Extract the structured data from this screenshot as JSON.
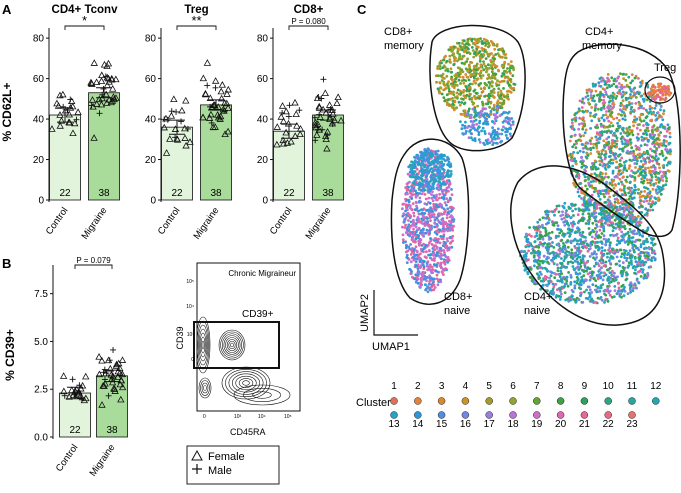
{
  "panel_labels": {
    "a": "A",
    "b": "B",
    "c": "C"
  },
  "panel_a": {
    "ylabel": "% CD62L+",
    "yticks": [
      "0",
      "20",
      "40",
      "60",
      "80"
    ],
    "xcategories": [
      "Control",
      "Migraine"
    ],
    "plots": [
      {
        "title": "CD4+ Tconv",
        "sig": "*",
        "n": [
          "22",
          "38"
        ]
      },
      {
        "title": "Treg",
        "sig": "**",
        "n": [
          "22",
          "38"
        ]
      },
      {
        "title": "CD8+",
        "sig": "P = 0.080",
        "n": [
          "22",
          "38"
        ]
      }
    ]
  },
  "panel_b": {
    "ylabel": "% CD39+",
    "yticks": [
      "0.0",
      "2.5",
      "5.0",
      "7.5"
    ],
    "xcategories": [
      "Control",
      "Migraine"
    ],
    "sig": "P = 0.079",
    "n": [
      "22",
      "38"
    ],
    "flow": {
      "title": "Chronic Migraineur",
      "gate": "CD39+",
      "xlabel": "CD45RA",
      "ylabel": "CD39",
      "xticks": [
        "0",
        "10³",
        "10⁴",
        "10⁵"
      ],
      "yticks": [
        "0",
        "10³",
        "10⁴",
        "10⁵"
      ]
    },
    "legend": {
      "female": "Female",
      "male": "Male"
    }
  },
  "panel_c": {
    "groups": [
      {
        "line1": "CD8+",
        "line2": "memory"
      },
      {
        "line1": "CD4+",
        "line2": "memory"
      },
      {
        "line1": "Treg",
        "line2": ""
      },
      {
        "line1": "CD8+",
        "line2": "naive"
      },
      {
        "line1": "CD4+",
        "line2": "naive"
      }
    ],
    "xlabel": "UMAP1",
    "ylabel": "UMAP2",
    "cluster_title": "Cluster",
    "clusters": [
      {
        "id": "1",
        "color": "#e0705a"
      },
      {
        "id": "2",
        "color": "#e5833a"
      },
      {
        "id": "3",
        "color": "#da8a2c"
      },
      {
        "id": "4",
        "color": "#c9922a"
      },
      {
        "id": "5",
        "color": "#a39a2a"
      },
      {
        "id": "6",
        "color": "#8fa52b"
      },
      {
        "id": "7",
        "color": "#62a532"
      },
      {
        "id": "8",
        "color": "#3fa140"
      },
      {
        "id": "9",
        "color": "#2aa45c"
      },
      {
        "id": "10",
        "color": "#2aa77e"
      },
      {
        "id": "11",
        "color": "#25a89a"
      },
      {
        "id": "12",
        "color": "#23a7b0"
      },
      {
        "id": "13",
        "color": "#24a3c8"
      },
      {
        "id": "14",
        "color": "#2b98d8"
      },
      {
        "id": "15",
        "color": "#4f8ee0"
      },
      {
        "id": "16",
        "color": "#7486e2"
      },
      {
        "id": "17",
        "color": "#9a7ee0"
      },
      {
        "id": "18",
        "color": "#b973da"
      },
      {
        "id": "19",
        "color": "#d06cc9"
      },
      {
        "id": "20",
        "color": "#e066b4"
      },
      {
        "id": "21",
        "color": "#e8659a"
      },
      {
        "id": "22",
        "color": "#ea6a82"
      },
      {
        "id": "23",
        "color": "#e4736c"
      }
    ]
  },
  "chart_data": [
    {
      "type": "bar",
      "title": "CD4+ Tconv",
      "ylabel": "% CD62L+",
      "categories": [
        "Control",
        "Migraine"
      ],
      "values": [
        42,
        53
      ],
      "sem": [
        3.5,
        2.5
      ],
      "n": [
        22,
        38
      ],
      "significance": "*",
      "ylim": [
        0,
        85
      ]
    },
    {
      "type": "bar",
      "title": "Treg",
      "ylabel": "% CD62L+",
      "categories": [
        "Control",
        "Migraine"
      ],
      "values": [
        36,
        47
      ],
      "sem": [
        3.5,
        2.5
      ],
      "n": [
        22,
        38
      ],
      "significance": "**",
      "ylim": [
        0,
        85
      ]
    },
    {
      "type": "bar",
      "title": "CD8+",
      "ylabel": "% CD62L+",
      "categories": [
        "Control",
        "Migraine"
      ],
      "values": [
        34,
        42
      ],
      "sem": [
        3.5,
        2.5
      ],
      "n": [
        22,
        38
      ],
      "significance": "P = 0.080",
      "ylim": [
        0,
        85
      ]
    },
    {
      "type": "bar",
      "title": "",
      "ylabel": "% CD39+",
      "categories": [
        "Control",
        "Migraine"
      ],
      "values": [
        2.3,
        3.2
      ],
      "sem": [
        0.3,
        0.3
      ],
      "n": [
        22,
        38
      ],
      "significance": "P = 0.079",
      "ylim": [
        0,
        9
      ]
    }
  ]
}
